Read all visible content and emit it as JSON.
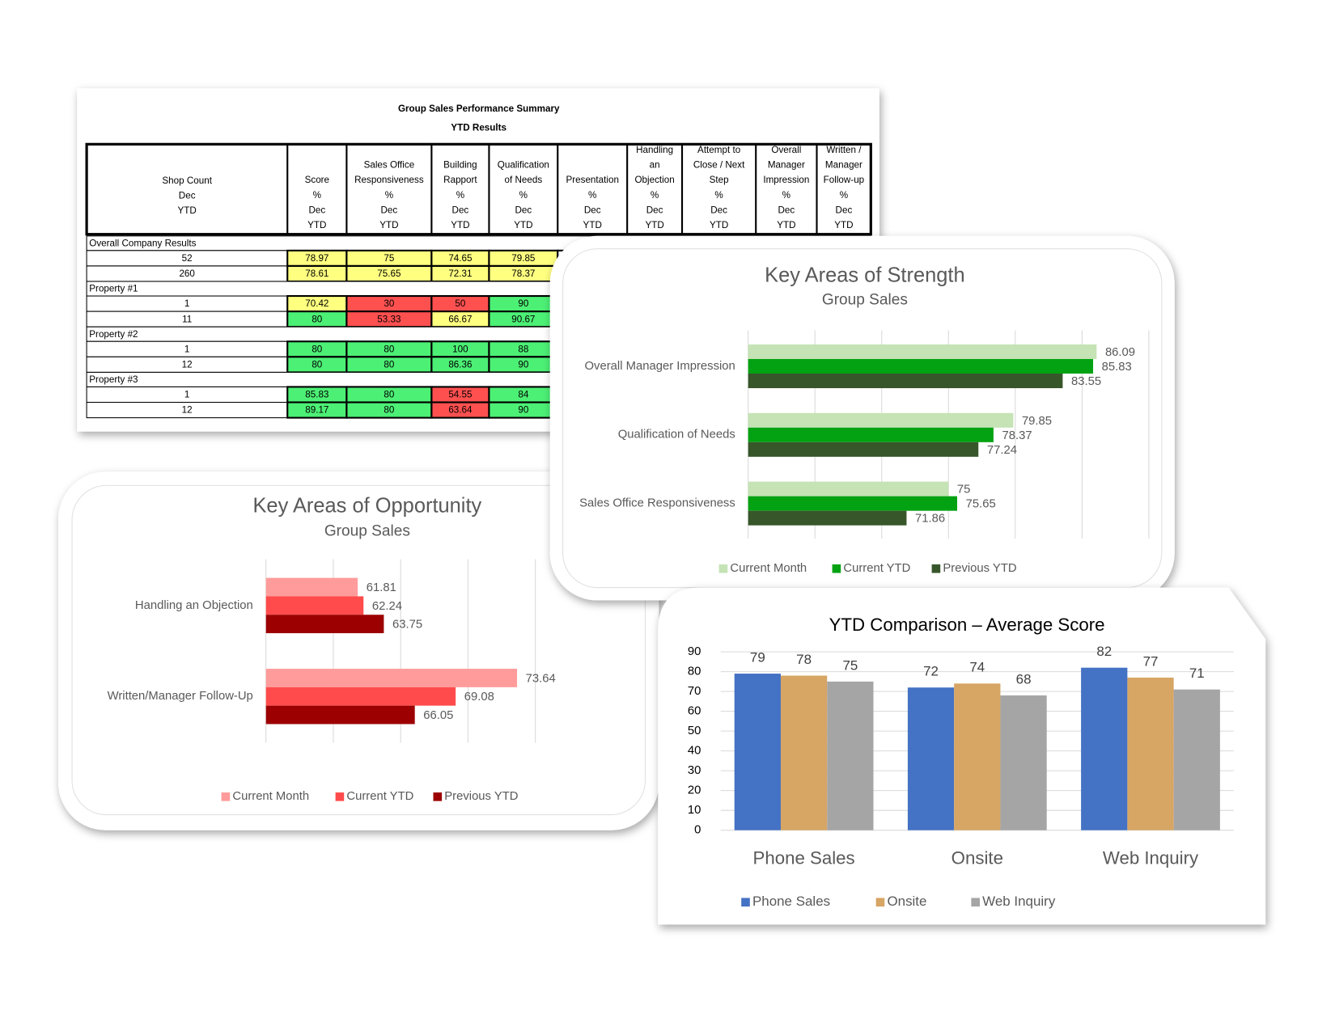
{
  "table": {
    "title": "Group Sales Performance Summary",
    "subtitle": "YTD Results",
    "headers": [
      [
        "Shop Count",
        "Dec",
        "YTD"
      ],
      [
        "Score",
        "%",
        "Dec",
        "YTD"
      ],
      [
        "Sales Office",
        "Responsiveness",
        "%",
        "Dec",
        "YTD"
      ],
      [
        "Building",
        "Rapport",
        "%",
        "Dec",
        "YTD"
      ],
      [
        "Qualification",
        "of Needs",
        "%",
        "Dec",
        "YTD"
      ],
      [
        "Presentation",
        "%",
        "Dec",
        "YTD"
      ],
      [
        "Handling",
        "an",
        "Objection",
        "%",
        "Dec",
        "YTD"
      ],
      [
        "Attempt to",
        "Close / Next",
        "Step",
        "%",
        "Dec",
        "YTD"
      ],
      [
        "Overall",
        "Manager",
        "Impression",
        "%",
        "Dec",
        "YTD"
      ],
      [
        "Written /",
        "Manager",
        "Follow-up",
        "%",
        "Dec",
        "YTD"
      ]
    ],
    "sections": [
      {
        "name": "Overall Company Results",
        "rows": [
          {
            "cells": [
              52,
              78.97,
              75,
              74.65,
              79.85
            ],
            "fills": [
              "#ffff80",
              "#ffff80",
              "#ffff80",
              "#ffff80"
            ]
          },
          {
            "cells": [
              260,
              78.61,
              75.65,
              72.31,
              78.37
            ],
            "fills": [
              "#ffff80",
              "#ffff80",
              "#ffff80",
              "#ffff80"
            ]
          }
        ]
      },
      {
        "name": "Property #1",
        "rows": [
          {
            "cells": [
              1,
              70.42,
              30,
              50,
              90
            ],
            "fills": [
              "#ffff80",
              "#ff5050",
              "#ff5050",
              "#4cf075"
            ]
          },
          {
            "cells": [
              11,
              80,
              53.33,
              66.67,
              90.67
            ],
            "fills": [
              "#4cf075",
              "#ff5050",
              "#ffff80",
              "#4cf075"
            ]
          }
        ]
      },
      {
        "name": "Property #2",
        "rows": [
          {
            "cells": [
              1,
              80,
              80,
              100,
              88
            ],
            "fills": [
              "#4cf075",
              "#4cf075",
              "#4cf075",
              "#4cf075"
            ]
          },
          {
            "cells": [
              12,
              80,
              80,
              86.36,
              90
            ],
            "fills": [
              "#4cf075",
              "#4cf075",
              "#4cf075",
              "#4cf075"
            ]
          }
        ]
      },
      {
        "name": "Property #3",
        "rows": [
          {
            "cells": [
              1,
              85.83,
              80,
              54.55,
              84
            ],
            "fills": [
              "#4cf075",
              "#4cf075",
              "#ff5050",
              "#4cf075"
            ]
          },
          {
            "cells": [
              12,
              89.17,
              80,
              63.64,
              90
            ],
            "fills": [
              "#4cf075",
              "#4cf075",
              "#ff5050",
              "#4cf075"
            ]
          }
        ]
      }
    ]
  },
  "chart_data": [
    {
      "type": "barh",
      "title": "Key Areas of Opportunity",
      "subtitle": "Group Sales",
      "categories": [
        "Handling an Objection",
        "Written/Manager Follow-Up"
      ],
      "series": [
        {
          "name": "Current Month",
          "color": "#ff9b9b",
          "values": [
            61.81,
            73.64
          ]
        },
        {
          "name": "Current YTD",
          "color": "#ff4b4b",
          "values": [
            62.24,
            69.08
          ]
        },
        {
          "name": "Previous YTD",
          "color": "#9c0000",
          "values": [
            63.75,
            66.05
          ]
        }
      ],
      "xlim": [
        55,
        75
      ],
      "xticks": [
        55,
        60,
        65,
        70,
        75
      ],
      "grid": true,
      "legend": "bottom"
    },
    {
      "type": "barh",
      "title": "Key Areas of Strength",
      "subtitle": "Group Sales",
      "categories": [
        "Overall Manager Impression",
        "Qualification of Needs",
        "Sales Office Responsiveness"
      ],
      "series": [
        {
          "name": "Current Month",
          "color": "#c5e3b5",
          "values": [
            86.09,
            79.85,
            75
          ]
        },
        {
          "name": "Current YTD",
          "color": "#03a212",
          "values": [
            85.83,
            78.37,
            75.65
          ]
        },
        {
          "name": "Previous YTD",
          "color": "#37562a",
          "values": [
            83.55,
            77.24,
            71.86
          ]
        }
      ],
      "xlim": [
        60,
        90
      ],
      "xticks": [
        60,
        65,
        70,
        75,
        80,
        85,
        90
      ],
      "grid": true,
      "legend": "bottom"
    },
    {
      "type": "bar",
      "title": "YTD Comparison – Average Score",
      "categories": [
        "Phone Sales",
        "Onsite",
        "Web Inquiry"
      ],
      "series": [
        {
          "name": "Phone Sales",
          "color": "#4472c4",
          "values": [
            79,
            72,
            82
          ]
        },
        {
          "name": "Onsite",
          "color": "#d7a564",
          "values": [
            78,
            74,
            77
          ]
        },
        {
          "name": "Web Inquiry",
          "color": "#a5a5a5",
          "values": [
            75,
            68,
            71
          ]
        }
      ],
      "ylim": [
        0,
        90
      ],
      "yticks": [
        0,
        10,
        20,
        30,
        40,
        50,
        60,
        70,
        80,
        90
      ],
      "grid": true,
      "legend": "bottom"
    }
  ]
}
